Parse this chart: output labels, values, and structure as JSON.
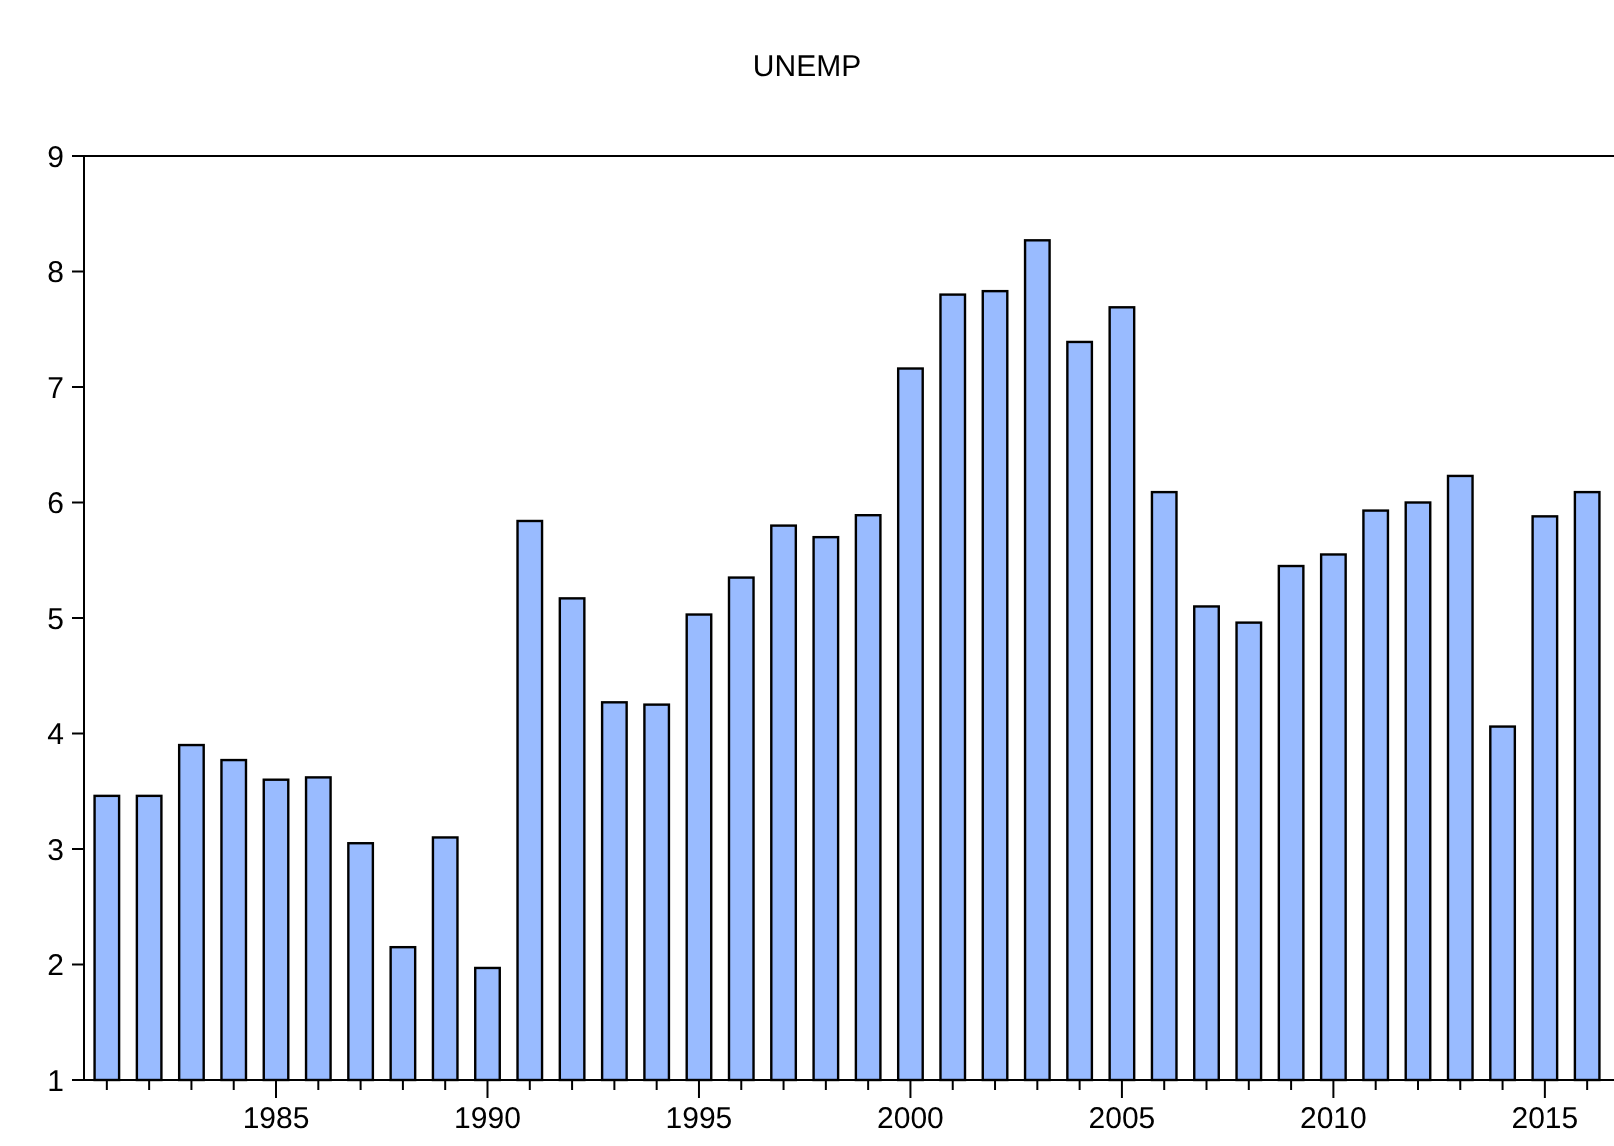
{
  "chart_data": {
    "type": "bar",
    "title": "UNEMP",
    "categories": [
      null,
      null,
      null,
      null,
      "1985",
      null,
      null,
      null,
      null,
      "1990",
      null,
      null,
      null,
      null,
      "1995",
      null,
      null,
      null,
      null,
      "2000",
      null,
      null,
      null,
      null,
      "2005",
      null,
      null,
      null,
      null,
      "2010",
      null,
      null,
      null,
      null,
      "2015",
      null
    ],
    "values": [
      3.46,
      3.46,
      3.9,
      3.77,
      3.6,
      3.62,
      3.05,
      2.15,
      3.1,
      1.97,
      5.84,
      5.17,
      4.27,
      4.25,
      5.03,
      5.35,
      5.8,
      5.7,
      5.89,
      7.16,
      7.8,
      7.83,
      8.27,
      7.39,
      7.69,
      6.09,
      5.1,
      4.96,
      5.45,
      5.55,
      5.93,
      6.0,
      6.23,
      4.06,
      5.88,
      6.09
    ],
    "color": "#99bbff",
    "ylim": [
      1,
      9
    ],
    "yticks": [
      1,
      2,
      3,
      4,
      5,
      6,
      7,
      8,
      9
    ],
    "grid": false
  }
}
